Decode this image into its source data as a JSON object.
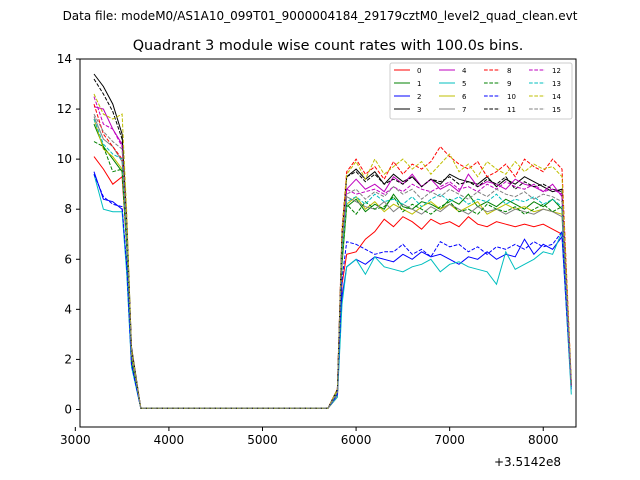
{
  "chart_data": {
    "type": "line",
    "suptitle": "Data file: modeM0/AS1A10_099T01_9000004184_29179cztM0_level2_quad_clean.evt",
    "title": "Quadrant 3 module wise count rates with 100.0s bins.",
    "xlabel": "",
    "ylabel": "",
    "x_offset_label": "+3.5142e8",
    "xlim": [
      3050,
      8350
    ],
    "ylim": [
      -0.7,
      14
    ],
    "xticks": [
      3000,
      4000,
      5000,
      6000,
      7000,
      8000
    ],
    "yticks": [
      0,
      2,
      4,
      6,
      8,
      10,
      12,
      14
    ],
    "grid": false,
    "legend": {
      "placement": "top-right",
      "columns": 4
    },
    "x": [
      3200,
      3300,
      3400,
      3500,
      3550,
      3600,
      3700,
      3800,
      3900,
      4000,
      4100,
      4200,
      4300,
      4400,
      4500,
      4600,
      4700,
      4800,
      4900,
      5000,
      5100,
      5200,
      5300,
      5400,
      5500,
      5600,
      5700,
      5800,
      5850,
      5900,
      6000,
      6100,
      6200,
      6300,
      6400,
      6500,
      6600,
      6700,
      6800,
      6900,
      7000,
      7100,
      7200,
      7300,
      7400,
      7500,
      7600,
      7700,
      7800,
      7900,
      8000,
      8100,
      8200,
      8300
    ],
    "series": [
      {
        "name": "0",
        "color": "#ff0000",
        "style": "solid",
        "values": [
          10.1,
          9.6,
          9.0,
          9.3,
          6.5,
          2.3,
          0.05,
          0.05,
          0.05,
          0.05,
          0.05,
          0.05,
          0.05,
          0.05,
          0.05,
          0.05,
          0.05,
          0.05,
          0.05,
          0.05,
          0.05,
          0.05,
          0.05,
          0.05,
          0.05,
          0.05,
          0.05,
          0.5,
          5.0,
          6.2,
          6.3,
          6.8,
          7.1,
          7.6,
          7.3,
          7.7,
          7.5,
          7.2,
          7.6,
          7.4,
          7.5,
          7.3,
          7.7,
          7.4,
          7.3,
          7.5,
          7.4,
          7.3,
          7.4,
          7.3,
          7.4,
          7.2,
          7.0,
          0.9
        ]
      },
      {
        "name": "1",
        "color": "#008000",
        "style": "solid",
        "values": [
          11.4,
          10.5,
          10.0,
          9.5,
          6.6,
          2.1,
          0.05,
          0.05,
          0.05,
          0.05,
          0.05,
          0.05,
          0.05,
          0.05,
          0.05,
          0.05,
          0.05,
          0.05,
          0.05,
          0.05,
          0.05,
          0.05,
          0.05,
          0.05,
          0.05,
          0.05,
          0.05,
          0.7,
          5.8,
          8.1,
          8.4,
          7.9,
          8.2,
          8.0,
          8.6,
          8.1,
          8.0,
          8.3,
          8.2,
          8.0,
          8.4,
          8.2,
          8.6,
          8.1,
          8.3,
          8.1,
          8.4,
          8.2,
          8.0,
          8.3,
          8.1,
          8.4,
          8.0,
          1.0
        ]
      },
      {
        "name": "2",
        "color": "#0000ff",
        "style": "solid",
        "values": [
          9.5,
          8.4,
          8.3,
          8.0,
          5.6,
          1.8,
          0.05,
          0.05,
          0.05,
          0.05,
          0.05,
          0.05,
          0.05,
          0.05,
          0.05,
          0.05,
          0.05,
          0.05,
          0.05,
          0.05,
          0.05,
          0.05,
          0.05,
          0.05,
          0.05,
          0.05,
          0.05,
          0.6,
          4.5,
          5.7,
          6.0,
          5.8,
          6.1,
          6.0,
          5.9,
          6.2,
          6.0,
          6.3,
          6.1,
          6.2,
          6.0,
          5.8,
          6.1,
          6.0,
          6.3,
          6.0,
          6.2,
          6.1,
          6.8,
          6.2,
          6.6,
          6.4,
          6.9,
          0.8
        ]
      },
      {
        "name": "3",
        "color": "#000000",
        "style": "solid",
        "values": [
          13.4,
          12.9,
          12.2,
          11.0,
          7.5,
          2.5,
          0.05,
          0.05,
          0.05,
          0.05,
          0.05,
          0.05,
          0.05,
          0.05,
          0.05,
          0.05,
          0.05,
          0.05,
          0.05,
          0.05,
          0.05,
          0.05,
          0.05,
          0.05,
          0.05,
          0.05,
          0.05,
          0.8,
          6.9,
          9.3,
          9.6,
          9.2,
          9.5,
          9.0,
          9.4,
          9.1,
          9.3,
          8.9,
          9.2,
          9.0,
          9.4,
          9.2,
          9.1,
          9.0,
          9.3,
          8.9,
          9.2,
          9.0,
          9.3,
          9.1,
          8.9,
          8.7,
          8.8,
          1.0
        ]
      },
      {
        "name": "4",
        "color": "#bf00bf",
        "style": "solid",
        "values": [
          12.1,
          12.0,
          11.2,
          10.6,
          7.2,
          2.4,
          0.05,
          0.05,
          0.05,
          0.05,
          0.05,
          0.05,
          0.05,
          0.05,
          0.05,
          0.05,
          0.05,
          0.05,
          0.05,
          0.05,
          0.05,
          0.05,
          0.05,
          0.05,
          0.05,
          0.05,
          0.05,
          0.8,
          6.5,
          8.8,
          9.2,
          8.8,
          9.0,
          8.7,
          9.3,
          9.0,
          9.4,
          8.9,
          9.2,
          8.8,
          9.0,
          8.7,
          9.4,
          8.9,
          9.1,
          9.0,
          8.8,
          9.2,
          9.0,
          8.9,
          8.7,
          9.0,
          8.5,
          0.9
        ]
      },
      {
        "name": "5",
        "color": "#00bfbf",
        "style": "solid",
        "values": [
          9.4,
          8.0,
          7.9,
          7.9,
          5.4,
          1.7,
          0.05,
          0.05,
          0.05,
          0.05,
          0.05,
          0.05,
          0.05,
          0.05,
          0.05,
          0.05,
          0.05,
          0.05,
          0.05,
          0.05,
          0.05,
          0.05,
          0.05,
          0.05,
          0.05,
          0.05,
          0.05,
          0.5,
          4.2,
          5.7,
          6.0,
          5.4,
          6.1,
          5.7,
          5.6,
          5.5,
          5.7,
          5.8,
          6.0,
          5.5,
          5.8,
          5.9,
          5.7,
          5.6,
          5.5,
          5.0,
          6.3,
          5.6,
          5.8,
          6.0,
          6.3,
          6.2,
          7.1,
          0.6
        ]
      },
      {
        "name": "6",
        "color": "#bfbf00",
        "style": "solid",
        "values": [
          11.6,
          10.4,
          10.1,
          9.6,
          6.5,
          2.0,
          0.05,
          0.05,
          0.05,
          0.05,
          0.05,
          0.05,
          0.05,
          0.05,
          0.05,
          0.05,
          0.05,
          0.05,
          0.05,
          0.05,
          0.05,
          0.05,
          0.05,
          0.05,
          0.05,
          0.05,
          0.05,
          0.6,
          6.0,
          8.2,
          8.5,
          8.0,
          8.3,
          7.9,
          8.2,
          8.0,
          7.8,
          8.1,
          8.3,
          8.0,
          8.2,
          7.9,
          8.1,
          8.3,
          7.8,
          8.0,
          8.2,
          8.0,
          8.1,
          7.9,
          8.0,
          7.9,
          7.8,
          0.9
        ]
      },
      {
        "name": "7",
        "color": "#808080",
        "style": "solid",
        "values": [
          11.7,
          10.8,
          10.5,
          9.9,
          6.8,
          2.2,
          0.05,
          0.05,
          0.05,
          0.05,
          0.05,
          0.05,
          0.05,
          0.05,
          0.05,
          0.05,
          0.05,
          0.05,
          0.05,
          0.05,
          0.05,
          0.05,
          0.05,
          0.05,
          0.05,
          0.05,
          0.05,
          0.6,
          6.2,
          8.5,
          8.3,
          8.1,
          8.0,
          8.3,
          7.9,
          8.2,
          8.0,
          7.8,
          8.1,
          7.9,
          8.2,
          8.0,
          7.8,
          8.1,
          7.9,
          8.0,
          7.8,
          8.0,
          7.9,
          7.8,
          8.0,
          7.9,
          7.7,
          0.9
        ]
      },
      {
        "name": "8",
        "color": "#ff0000",
        "style": "dashed",
        "values": [
          12.2,
          11.0,
          10.5,
          10.0,
          6.9,
          2.2,
          0.05,
          0.05,
          0.05,
          0.05,
          0.05,
          0.05,
          0.05,
          0.05,
          0.05,
          0.05,
          0.05,
          0.05,
          0.05,
          0.05,
          0.05,
          0.05,
          0.05,
          0.05,
          0.05,
          0.05,
          0.05,
          0.8,
          7.2,
          9.5,
          10.0,
          9.4,
          9.7,
          9.2,
          9.9,
          9.4,
          9.8,
          9.6,
          9.9,
          10.5,
          10.1,
          9.8,
          9.6,
          9.9,
          9.3,
          9.5,
          9.8,
          9.3,
          10.0,
          9.7,
          9.5,
          10.0,
          9.6,
          1.1
        ]
      },
      {
        "name": "9",
        "color": "#008000",
        "style": "dashed",
        "values": [
          10.7,
          10.5,
          9.5,
          9.6,
          6.4,
          2.0,
          0.05,
          0.05,
          0.05,
          0.05,
          0.05,
          0.05,
          0.05,
          0.05,
          0.05,
          0.05,
          0.05,
          0.05,
          0.05,
          0.05,
          0.05,
          0.05,
          0.05,
          0.05,
          0.05,
          0.05,
          0.05,
          0.7,
          6.0,
          8.2,
          7.8,
          8.3,
          8.0,
          8.1,
          8.5,
          7.9,
          8.2,
          8.0,
          7.8,
          8.1,
          8.3,
          7.9,
          8.0,
          7.8,
          8.2,
          8.0,
          7.9,
          8.1,
          7.8,
          8.0,
          8.2,
          7.9,
          8.1,
          0.9
        ]
      },
      {
        "name": "10",
        "color": "#0000ff",
        "style": "dashed",
        "values": [
          9.4,
          8.5,
          8.2,
          8.1,
          5.7,
          1.8,
          0.05,
          0.05,
          0.05,
          0.05,
          0.05,
          0.05,
          0.05,
          0.05,
          0.05,
          0.05,
          0.05,
          0.05,
          0.05,
          0.05,
          0.05,
          0.05,
          0.05,
          0.05,
          0.05,
          0.05,
          0.05,
          0.6,
          5.2,
          6.7,
          6.6,
          6.4,
          6.2,
          6.3,
          6.3,
          6.6,
          6.2,
          6.4,
          6.1,
          6.7,
          6.5,
          6.6,
          6.3,
          6.5,
          6.2,
          6.5,
          6.4,
          6.6,
          6.4,
          6.7,
          6.5,
          6.6,
          7.1,
          0.9
        ]
      },
      {
        "name": "11",
        "color": "#000000",
        "style": "dashed",
        "values": [
          13.2,
          12.6,
          11.9,
          10.8,
          7.4,
          2.4,
          0.05,
          0.05,
          0.05,
          0.05,
          0.05,
          0.05,
          0.05,
          0.05,
          0.05,
          0.05,
          0.05,
          0.05,
          0.05,
          0.05,
          0.05,
          0.05,
          0.05,
          0.05,
          0.05,
          0.05,
          0.05,
          0.8,
          7.0,
          9.3,
          9.5,
          9.1,
          9.4,
          9.0,
          9.2,
          9.0,
          9.3,
          8.9,
          9.2,
          9.1,
          9.3,
          9.0,
          9.1,
          8.9,
          9.2,
          9.0,
          9.3,
          8.8,
          9.1,
          8.9,
          9.0,
          8.8,
          8.7,
          1.0
        ]
      },
      {
        "name": "12",
        "color": "#bf00bf",
        "style": "dashed",
        "values": [
          12.5,
          11.4,
          11.2,
          10.5,
          7.1,
          2.3,
          0.05,
          0.05,
          0.05,
          0.05,
          0.05,
          0.05,
          0.05,
          0.05,
          0.05,
          0.05,
          0.05,
          0.05,
          0.05,
          0.05,
          0.05,
          0.05,
          0.05,
          0.05,
          0.05,
          0.05,
          0.05,
          0.7,
          6.7,
          8.8,
          8.6,
          8.7,
          8.8,
          8.6,
          8.9,
          8.7,
          9.0,
          8.8,
          8.7,
          8.9,
          9.1,
          8.8,
          8.9,
          8.7,
          9.0,
          8.8,
          9.1,
          8.9,
          8.8,
          9.0,
          8.7,
          8.8,
          8.6,
          0.9
        ]
      },
      {
        "name": "13",
        "color": "#00bfbf",
        "style": "dashed",
        "values": [
          11.6,
          10.6,
          10.2,
          10.0,
          6.8,
          2.2,
          0.05,
          0.05,
          0.05,
          0.05,
          0.05,
          0.05,
          0.05,
          0.05,
          0.05,
          0.05,
          0.05,
          0.05,
          0.05,
          0.05,
          0.05,
          0.05,
          0.05,
          0.05,
          0.05,
          0.05,
          0.05,
          0.7,
          6.3,
          8.3,
          8.5,
          8.2,
          8.6,
          8.3,
          8.4,
          8.2,
          8.5,
          8.1,
          8.4,
          8.6,
          8.3,
          8.5,
          8.2,
          8.4,
          8.3,
          8.6,
          8.2,
          8.4,
          8.3,
          8.5,
          8.2,
          8.4,
          8.1,
          0.9
        ]
      },
      {
        "name": "14",
        "color": "#bfbf00",
        "style": "dashed",
        "values": [
          12.6,
          11.8,
          11.6,
          11.8,
          7.8,
          2.4,
          0.05,
          0.05,
          0.05,
          0.05,
          0.05,
          0.05,
          0.05,
          0.05,
          0.05,
          0.05,
          0.05,
          0.05,
          0.05,
          0.05,
          0.05,
          0.05,
          0.05,
          0.05,
          0.05,
          0.05,
          0.05,
          0.8,
          7.0,
          9.4,
          9.9,
          9.2,
          10.0,
          9.4,
          9.7,
          10.0,
          9.6,
          9.9,
          9.4,
          9.8,
          10.2,
          9.5,
          9.8,
          9.3,
          9.9,
          9.6,
          9.4,
          9.9,
          9.5,
          9.8,
          9.6,
          9.7,
          9.3,
          1.1
        ]
      },
      {
        "name": "15",
        "color": "#808080",
        "style": "dashed",
        "values": [
          11.8,
          11.1,
          10.7,
          10.4,
          7.0,
          2.2,
          0.05,
          0.05,
          0.05,
          0.05,
          0.05,
          0.05,
          0.05,
          0.05,
          0.05,
          0.05,
          0.05,
          0.05,
          0.05,
          0.05,
          0.05,
          0.05,
          0.05,
          0.05,
          0.05,
          0.05,
          0.05,
          0.7,
          6.6,
          8.6,
          8.8,
          8.4,
          8.7,
          8.5,
          8.9,
          8.6,
          8.8,
          8.4,
          8.7,
          8.5,
          8.8,
          8.6,
          8.4,
          8.7,
          8.5,
          8.8,
          8.6,
          8.5,
          8.7,
          8.4,
          8.6,
          8.5,
          8.3,
          1.0
        ]
      }
    ]
  }
}
